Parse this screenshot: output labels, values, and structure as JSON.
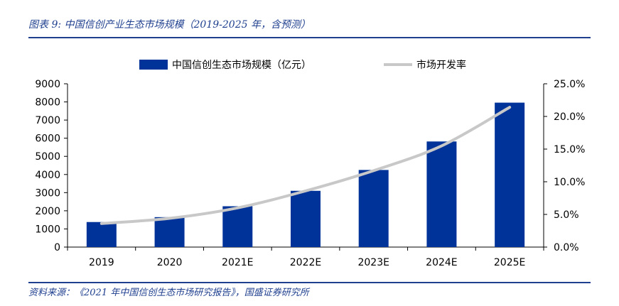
{
  "figure": {
    "title": "图表 9:  中国信创产业生态市场规模（2019-2025 年，含预测）",
    "source": "资料来源：《2021 年中国信创生态市场研究报告》，国盛证券研究所"
  },
  "chart_data": {
    "type": "bar",
    "categories": [
      "2019",
      "2020",
      "2021E",
      "2022E",
      "2023E",
      "2024E",
      "2025E"
    ],
    "series": [
      {
        "name": "中国信创生态市场规模（亿元）",
        "type": "bar",
        "axis": "left",
        "values": [
          1380,
          1650,
          2250,
          3100,
          4250,
          5820,
          7960
        ],
        "color": "#003399"
      },
      {
        "name": "市场开发率",
        "type": "line",
        "axis": "right",
        "values": [
          0.036,
          0.044,
          0.06,
          0.086,
          0.117,
          0.155,
          0.214
        ],
        "color": "#c8c8c8"
      }
    ],
    "left_axis": {
      "min": 0,
      "max": 9000,
      "step": 1000,
      "tick_labels": [
        "0",
        "1000",
        "2000",
        "3000",
        "4000",
        "5000",
        "6000",
        "7000",
        "8000",
        "9000"
      ]
    },
    "right_axis": {
      "min": 0,
      "max": 0.25,
      "step": 0.05,
      "tick_labels": [
        "0.0%",
        "5.0%",
        "10.0%",
        "15.0%",
        "20.0%",
        "25.0%"
      ]
    },
    "legend_position": "top",
    "grid": false
  }
}
